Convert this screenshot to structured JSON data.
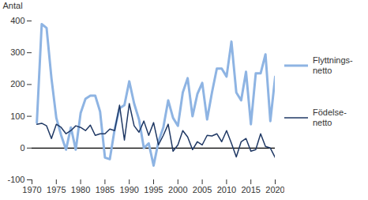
{
  "chart_data": {
    "type": "line",
    "y_label": "Antal",
    "x": [
      1971,
      1972,
      1973,
      1974,
      1975,
      1976,
      1977,
      1978,
      1979,
      1980,
      1981,
      1982,
      1983,
      1984,
      1985,
      1986,
      1987,
      1988,
      1989,
      1990,
      1991,
      1992,
      1993,
      1994,
      1995,
      1996,
      1997,
      1998,
      1999,
      2000,
      2001,
      2002,
      2003,
      2004,
      2005,
      2006,
      2007,
      2008,
      2009,
      2010,
      2011,
      2012,
      2013,
      2014,
      2015,
      2016,
      2017,
      2018,
      2019,
      2020
    ],
    "series": [
      {
        "name": "Flyttnings-\nnetto",
        "color": "#8eb4e3",
        "values": [
          80,
          390,
          378,
          220,
          95,
          40,
          -5,
          65,
          -5,
          110,
          155,
          165,
          165,
          115,
          -30,
          -35,
          60,
          125,
          135,
          210,
          140,
          90,
          0,
          15,
          -55,
          20,
          65,
          150,
          95,
          70,
          175,
          220,
          100,
          170,
          205,
          90,
          175,
          250,
          250,
          225,
          335,
          175,
          150,
          240,
          75,
          235,
          235,
          295,
          85,
          225
        ]
      },
      {
        "name": "Födelse-\nnetto",
        "color": "#1f3864",
        "values": [
          75,
          78,
          70,
          30,
          75,
          65,
          45,
          55,
          70,
          65,
          55,
          72,
          40,
          45,
          45,
          60,
          55,
          135,
          25,
          140,
          70,
          50,
          85,
          40,
          80,
          10,
          40,
          75,
          -10,
          10,
          55,
          35,
          -5,
          20,
          10,
          40,
          38,
          45,
          20,
          55,
          15,
          -28,
          20,
          30,
          -10,
          -5,
          45,
          5,
          0,
          -30
        ]
      }
    ],
    "xlim": [
      1970,
      2020
    ],
    "xticks": [
      1970,
      1975,
      1980,
      1985,
      1990,
      1995,
      2000,
      2005,
      2010,
      2015,
      2020
    ],
    "ylim": [
      -100,
      400
    ],
    "yticks": [
      -100,
      0,
      100,
      200,
      300,
      400
    ],
    "legend": "right",
    "grid": false
  }
}
